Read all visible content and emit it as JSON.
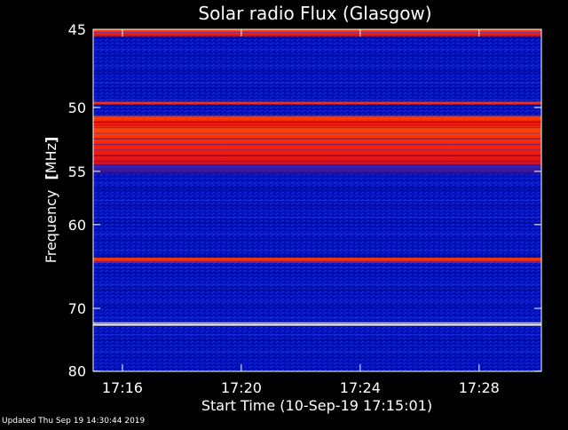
{
  "chart_data": {
    "type": "heatmap",
    "title": "Solar radio Flux (Glasgow)",
    "ylabel": "Frequency",
    "ylabel_unit": "MHz",
    "xlabel": "Start Time (10-Sep-19 17:15:01)",
    "y_range": [
      45,
      80
    ],
    "y_ticks": [
      "45",
      "50",
      "55",
      "60",
      "70",
      "80"
    ],
    "x_ticks": [
      "17:16",
      "17:20",
      "17:24",
      "17:28"
    ],
    "colors": {
      "low": "#0008a8",
      "mid": "#3a1aa0",
      "high": "#ff2a00",
      "peak": "#fff6c0"
    },
    "bands": [
      {
        "from": 45.0,
        "to": 45.4,
        "level": "high"
      },
      {
        "from": 49.6,
        "to": 49.8,
        "level": "high"
      },
      {
        "from": 50.6,
        "to": 51.4,
        "level": "high"
      },
      {
        "from": 51.4,
        "to": 54.4,
        "level": "high"
      },
      {
        "from": 54.4,
        "to": 55.2,
        "level": "mid"
      },
      {
        "from": 63.6,
        "to": 64.2,
        "level": "high"
      },
      {
        "from": 72.0,
        "to": 72.5,
        "level": "peak"
      }
    ]
  },
  "footer": {
    "updated": "Updated Thu Sep 19 14:30:44 2019"
  }
}
